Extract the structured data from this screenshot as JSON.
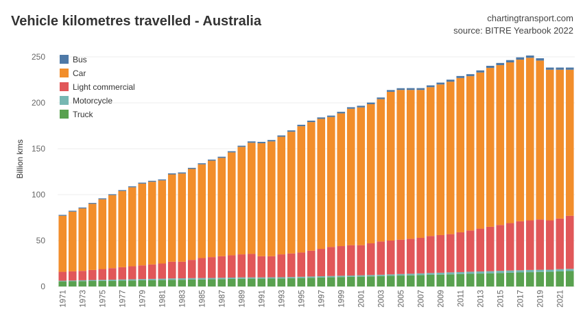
{
  "title": "Vehicle kilometres travelled - Australia",
  "source_lines": [
    "chartingtransport.com",
    "source: BITRE Yearbook 2022"
  ],
  "chart_data": {
    "type": "bar",
    "stacked": true,
    "title": "Vehicle kilometres travelled - Australia",
    "xlabel": "",
    "ylabel": "Billion kms",
    "ylim": [
      0,
      265
    ],
    "yticks": [
      0,
      50,
      100,
      150,
      200,
      250
    ],
    "grid": true,
    "legend_position": "top-left",
    "categories": [
      1971,
      1972,
      1973,
      1974,
      1975,
      1976,
      1977,
      1978,
      1979,
      1980,
      1981,
      1982,
      1983,
      1984,
      1985,
      1986,
      1987,
      1988,
      1989,
      1990,
      1991,
      1992,
      1993,
      1994,
      1995,
      1996,
      1997,
      1998,
      1999,
      2000,
      2001,
      2002,
      2003,
      2004,
      2005,
      2006,
      2007,
      2008,
      2009,
      2010,
      2011,
      2012,
      2013,
      2014,
      2015,
      2016,
      2017,
      2018,
      2019,
      2020,
      2021,
      2022
    ],
    "x_tick_labels": [
      "1971",
      "1973",
      "1975",
      "1977",
      "1979",
      "1981",
      "1983",
      "1985",
      "1987",
      "1989",
      "1991",
      "1993",
      "1995",
      "1997",
      "1999",
      "2001",
      "2003",
      "2005",
      "2007",
      "2009",
      "2011",
      "2013",
      "2015",
      "2017",
      "2019",
      "2021"
    ],
    "stack_order": [
      "Truck",
      "Motorcycle",
      "Light commercial",
      "Car",
      "Bus"
    ],
    "legend_order": [
      "Bus",
      "Car",
      "Light commercial",
      "Motorcycle",
      "Truck"
    ],
    "series": [
      {
        "name": "Truck",
        "color": "#59a14f",
        "values": [
          5.5,
          5.6,
          5.8,
          6.0,
          6.1,
          6.2,
          6.4,
          6.5,
          6.7,
          6.8,
          7.0,
          7.2,
          7.3,
          7.5,
          7.6,
          7.8,
          8.0,
          8.2,
          8.4,
          8.5,
          8.5,
          8.6,
          8.7,
          8.9,
          9.2,
          9.5,
          9.8,
          10.0,
          10.3,
          10.5,
          10.7,
          11.0,
          11.3,
          11.6,
          11.9,
          12.1,
          12.4,
          12.7,
          12.9,
          13.2,
          13.5,
          13.8,
          14.1,
          14.4,
          14.7,
          15.0,
          15.3,
          15.6,
          15.8,
          16.0,
          16.5,
          16.8
        ]
      },
      {
        "name": "Motorcycle",
        "color": "#76b7b2",
        "values": [
          0.8,
          0.9,
          1.0,
          1.1,
          1.2,
          1.3,
          1.3,
          1.4,
          1.4,
          1.5,
          1.5,
          1.6,
          1.6,
          1.6,
          1.6,
          1.5,
          1.5,
          1.5,
          1.5,
          1.4,
          1.4,
          1.4,
          1.4,
          1.4,
          1.4,
          1.4,
          1.4,
          1.4,
          1.4,
          1.4,
          1.5,
          1.5,
          1.5,
          1.6,
          1.7,
          1.8,
          1.9,
          2.0,
          2.1,
          2.2,
          2.2,
          2.3,
          2.3,
          2.3,
          2.4,
          2.4,
          2.4,
          2.4,
          2.4,
          2.3,
          2.4,
          2.4
        ]
      },
      {
        "name": "Light commercial",
        "color": "#e15759",
        "values": [
          9.7,
          10.0,
          10.2,
          10.9,
          11.7,
          12.5,
          13.3,
          14.1,
          14.9,
          15.7,
          16.5,
          18.2,
          18.1,
          19.9,
          21.8,
          22.7,
          23.5,
          24.3,
          25.1,
          25.6,
          23.1,
          23.0,
          24.9,
          25.7,
          26.4,
          28.1,
          29.8,
          31.6,
          32.3,
          33.1,
          32.8,
          34.5,
          36.2,
          36.8,
          37.4,
          38.1,
          38.7,
          40.3,
          41.0,
          41.6,
          43.3,
          44.9,
          46.6,
          48.3,
          49.9,
          51.6,
          53.3,
          54.0,
          54.8,
          53.7,
          55.1,
          57.8
        ]
      },
      {
        "name": "Car",
        "color": "#f28e2b",
        "values": [
          61.0,
          65.0,
          68.0,
          72.0,
          76.0,
          79.5,
          83.0,
          86.0,
          89.0,
          90.0,
          90.5,
          95.0,
          96.0,
          99.0,
          102.0,
          105.0,
          107.0,
          112.0,
          117.0,
          121.0,
          123.0,
          125.0,
          128.0,
          132.5,
          137.5,
          140.0,
          141.5,
          141.5,
          144.5,
          148.5,
          150.0,
          151.5,
          155.0,
          162.0,
          163.0,
          162.0,
          161.0,
          162.0,
          164.0,
          166.0,
          168.0,
          168.0,
          170.0,
          173.0,
          174.0,
          175.0,
          176.0,
          177.0,
          173.0,
          164.0,
          162.0,
          159.0
        ]
      },
      {
        "name": "Bus",
        "color": "#4e79a7",
        "values": [
          1.0,
          1.0,
          1.0,
          1.0,
          1.0,
          1.0,
          1.0,
          1.1,
          1.1,
          1.1,
          1.1,
          1.2,
          1.2,
          1.2,
          1.2,
          1.2,
          1.3,
          1.3,
          1.3,
          1.5,
          1.5,
          1.5,
          1.5,
          1.5,
          1.6,
          1.6,
          1.6,
          1.6,
          1.7,
          1.7,
          1.8,
          1.8,
          1.8,
          1.9,
          1.9,
          2.0,
          2.0,
          2.0,
          2.0,
          2.2,
          2.2,
          2.2,
          2.3,
          2.3,
          2.4,
          2.5,
          2.5,
          2.5,
          2.5,
          2.4,
          2.4,
          2.4
        ]
      }
    ]
  }
}
